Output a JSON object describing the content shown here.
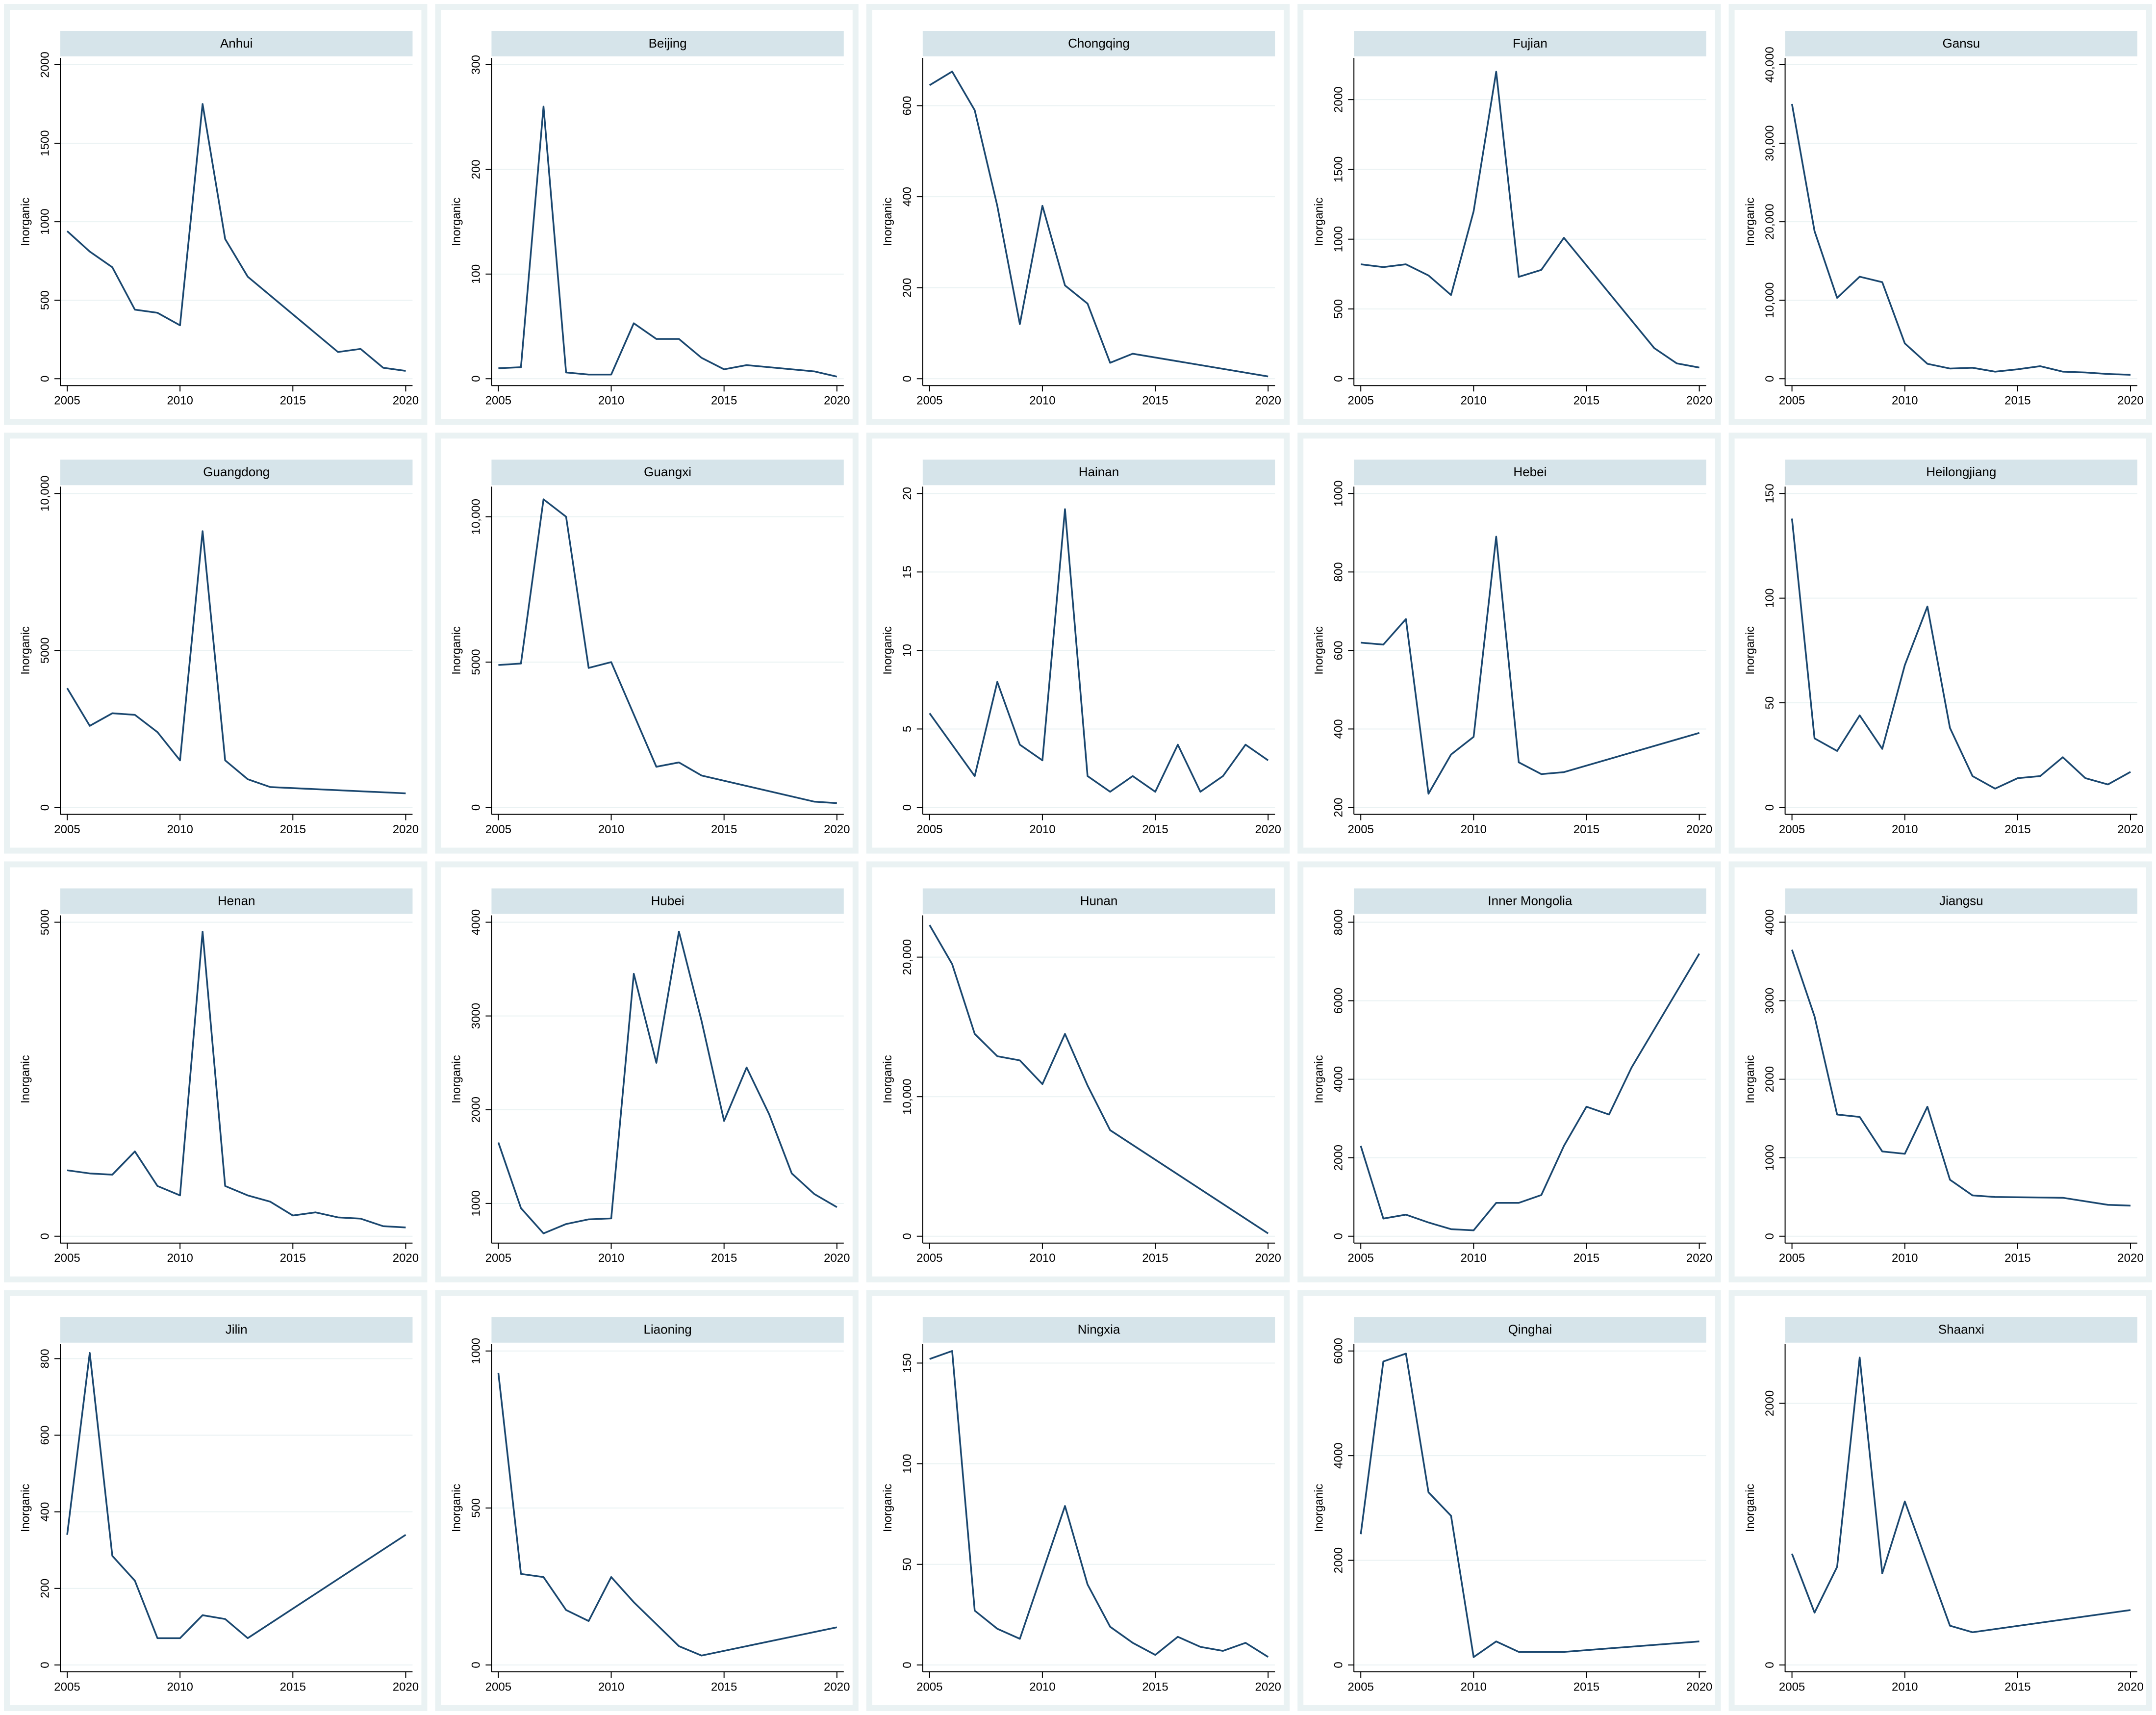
{
  "chart_data": [
    {
      "type": "line",
      "title": "Anhui",
      "y_label": "Inorganic",
      "color": "#1a476f",
      "grid": true,
      "x": [
        2005,
        2006,
        2007,
        2008,
        2009,
        2010,
        2011,
        2012,
        2013,
        2017,
        2018,
        2019,
        2020
      ],
      "values": [
        940,
        810,
        710,
        440,
        420,
        340,
        1750,
        890,
        650,
        170,
        190,
        70,
        50
      ],
      "xlim": [
        2005,
        2020
      ],
      "xticks": [
        2005,
        2010,
        2015,
        2020
      ],
      "ylim": [
        0,
        2000
      ],
      "yticks": [
        0,
        500,
        1000,
        1500,
        2000
      ]
    },
    {
      "type": "line",
      "title": "Beijing",
      "y_label": "Inorganic",
      "color": "#1a476f",
      "grid": true,
      "x": [
        2005,
        2006,
        2007,
        2008,
        2009,
        2010,
        2011,
        2012,
        2013,
        2014,
        2015,
        2016,
        2019,
        2020
      ],
      "values": [
        10,
        11,
        260,
        6,
        4,
        4,
        53,
        38,
        38,
        20,
        9,
        13,
        7,
        2
      ],
      "xlim": [
        2005,
        2020
      ],
      "xticks": [
        2005,
        2010,
        2015,
        2020
      ],
      "ylim": [
        0,
        300
      ],
      "yticks": [
        0,
        100,
        200,
        300
      ]
    },
    {
      "type": "line",
      "title": "Chongqing",
      "y_label": "Inorganic",
      "color": "#1a476f",
      "grid": true,
      "x": [
        2005,
        2006,
        2007,
        2008,
        2009,
        2010,
        2011,
        2012,
        2013,
        2014,
        2020
      ],
      "values": [
        645,
        675,
        590,
        380,
        120,
        380,
        205,
        165,
        35,
        55,
        5
      ],
      "xlim": [
        2005,
        2020
      ],
      "xticks": [
        2005,
        2010,
        2015,
        2020
      ],
      "ylim": [
        0,
        690
      ],
      "yticks": [
        0,
        200,
        400,
        600
      ]
    },
    {
      "type": "line",
      "title": "Fujian",
      "y_label": "Inorganic",
      "color": "#1a476f",
      "grid": true,
      "x": [
        2005,
        2006,
        2007,
        2008,
        2009,
        2010,
        2011,
        2012,
        2013,
        2014,
        2018,
        2019,
        2020
      ],
      "values": [
        820,
        800,
        820,
        740,
        600,
        1200,
        2200,
        730,
        780,
        1010,
        220,
        110,
        80
      ],
      "xlim": [
        2005,
        2020
      ],
      "xticks": [
        2005,
        2010,
        2015,
        2020
      ],
      "ylim": [
        0,
        2250
      ],
      "yticks": [
        0,
        500,
        1000,
        1500,
        2000
      ]
    },
    {
      "type": "line",
      "title": "Gansu",
      "y_label": "Inorganic",
      "color": "#1a476f",
      "grid": true,
      "x": [
        2005,
        2006,
        2007,
        2008,
        2009,
        2010,
        2011,
        2012,
        2013,
        2014,
        2015,
        2016,
        2017,
        2018,
        2019,
        2020
      ],
      "values": [
        35000,
        18800,
        10300,
        13000,
        12300,
        4500,
        1900,
        1300,
        1400,
        900,
        1200,
        1600,
        900,
        800,
        600,
        500
      ],
      "xlim": [
        2005,
        2020
      ],
      "xticks": [
        2005,
        2010,
        2015,
        2020
      ],
      "ylim": [
        0,
        40000
      ],
      "yticks": [
        0,
        {
          "value": 10000,
          "label": "10,000"
        },
        {
          "value": 20000,
          "label": "20,000"
        },
        {
          "value": 30000,
          "label": "30,000"
        },
        {
          "value": 40000,
          "label": "40,000"
        }
      ]
    },
    {
      "type": "line",
      "title": "Guangdong",
      "y_label": "Inorganic",
      "color": "#1a476f",
      "grid": true,
      "x": [
        2005,
        2006,
        2007,
        2008,
        2009,
        2010,
        2011,
        2012,
        2013,
        2014,
        2020
      ],
      "values": [
        3800,
        2600,
        3000,
        2950,
        2400,
        1500,
        8800,
        1500,
        900,
        650,
        450
      ],
      "xlim": [
        2005,
        2020
      ],
      "xticks": [
        2005,
        2010,
        2015,
        2020
      ],
      "ylim": [
        0,
        10000
      ],
      "yticks": [
        0,
        5000,
        {
          "value": 10000,
          "label": "10,000"
        }
      ]
    },
    {
      "type": "line",
      "title": "Guangxi",
      "y_label": "Inorganic",
      "color": "#1a476f",
      "grid": true,
      "x": [
        2005,
        2006,
        2007,
        2008,
        2009,
        2010,
        2012,
        2013,
        2014,
        2019,
        2020
      ],
      "values": [
        4900,
        4950,
        10600,
        10000,
        4800,
        5000,
        1400,
        1550,
        1100,
        200,
        150
      ],
      "xlim": [
        2005,
        2020
      ],
      "xticks": [
        2005,
        2010,
        2015,
        2020
      ],
      "ylim": [
        0,
        10800
      ],
      "yticks": [
        0,
        5000,
        {
          "value": 10000,
          "label": "10,000"
        }
      ]
    },
    {
      "type": "line",
      "title": "Hainan",
      "y_label": "Inorganic",
      "color": "#1a476f",
      "grid": true,
      "x": [
        2005,
        2007,
        2008,
        2009,
        2010,
        2011,
        2012,
        2013,
        2014,
        2015,
        2016,
        2017,
        2018,
        2019,
        2020
      ],
      "values": [
        6,
        2,
        8,
        4,
        3,
        19,
        2,
        1,
        2,
        1,
        4,
        1,
        2,
        4,
        3
      ],
      "xlim": [
        2005,
        2020
      ],
      "xticks": [
        2005,
        2010,
        2015,
        2020
      ],
      "ylim": [
        0,
        20
      ],
      "yticks": [
        0,
        5,
        10,
        15,
        20
      ]
    },
    {
      "type": "line",
      "title": "Hebei",
      "y_label": "Inorganic",
      "color": "#1a476f",
      "grid": true,
      "x": [
        2005,
        2006,
        2007,
        2008,
        2009,
        2010,
        2011,
        2012,
        2013,
        2014,
        2020
      ],
      "values": [
        620,
        615,
        680,
        235,
        335,
        380,
        890,
        315,
        285,
        290,
        390
      ],
      "xlim": [
        2005,
        2020
      ],
      "xticks": [
        2005,
        2010,
        2015,
        2020
      ],
      "ylim": [
        200,
        1000
      ],
      "yticks": [
        200,
        400,
        600,
        800,
        1000
      ]
    },
    {
      "type": "line",
      "title": "Heilongjiang",
      "y_label": "Inorganic",
      "color": "#1a476f",
      "grid": true,
      "x": [
        2005,
        2006,
        2007,
        2008,
        2009,
        2010,
        2011,
        2012,
        2013,
        2014,
        2015,
        2016,
        2017,
        2018,
        2019,
        2020
      ],
      "values": [
        138,
        33,
        27,
        44,
        28,
        68,
        96,
        38,
        15,
        9,
        14,
        15,
        24,
        14,
        11,
        17
      ],
      "xlim": [
        2005,
        2020
      ],
      "xticks": [
        2005,
        2010,
        2015,
        2020
      ],
      "ylim": [
        0,
        150
      ],
      "yticks": [
        0,
        50,
        100,
        150
      ]
    },
    {
      "type": "line",
      "title": "Henan",
      "y_label": "Inorganic",
      "color": "#1a476f",
      "grid": true,
      "x": [
        2005,
        2006,
        2007,
        2008,
        2009,
        2010,
        2011,
        2012,
        2013,
        2014,
        2015,
        2016,
        2017,
        2018,
        2019,
        2020
      ],
      "values": [
        1050,
        1000,
        980,
        1350,
        800,
        650,
        4850,
        800,
        650,
        550,
        330,
        380,
        300,
        280,
        160,
        140
      ],
      "xlim": [
        2005,
        2020
      ],
      "xticks": [
        2005,
        2010,
        2015,
        2020
      ],
      "ylim": [
        0,
        5000
      ],
      "yticks": [
        0,
        5000
      ]
    },
    {
      "type": "line",
      "title": "Hubei",
      "y_label": "Inorganic",
      "color": "#1a476f",
      "grid": true,
      "x": [
        2005,
        2006,
        2007,
        2008,
        2009,
        2010,
        2011,
        2012,
        2013,
        2014,
        2015,
        2016,
        2017,
        2018,
        2019,
        2020
      ],
      "values": [
        1650,
        950,
        680,
        780,
        830,
        840,
        3450,
        2500,
        3900,
        2950,
        1880,
        2450,
        1950,
        1320,
        1100,
        960
      ],
      "xlim": [
        2005,
        2020
      ],
      "xticks": [
        2005,
        2010,
        2015,
        2020
      ],
      "ylim": [
        650,
        4000
      ],
      "yticks": [
        1000,
        2000,
        3000,
        4000
      ]
    },
    {
      "type": "line",
      "title": "Hunan",
      "y_label": "Inorganic",
      "color": "#1a476f",
      "grid": true,
      "x": [
        2005,
        2006,
        2007,
        2008,
        2009,
        2010,
        2011,
        2012,
        2013,
        2020
      ],
      "values": [
        22300,
        19500,
        14500,
        12900,
        12600,
        10900,
        14500,
        10800,
        7600,
        200
      ],
      "xlim": [
        2005,
        2020
      ],
      "xticks": [
        2005,
        2010,
        2015,
        2020
      ],
      "ylim": [
        0,
        22500
      ],
      "yticks": [
        0,
        {
          "value": 10000,
          "label": "10,000"
        },
        {
          "value": 20000,
          "label": "20,000"
        }
      ]
    },
    {
      "type": "line",
      "title": "Inner Mongolia",
      "y_label": "Inorganic",
      "color": "#1a476f",
      "grid": true,
      "x": [
        2005,
        2006,
        2007,
        2008,
        2009,
        2010,
        2011,
        2012,
        2013,
        2014,
        2015,
        2016,
        2017,
        2020
      ],
      "values": [
        2300,
        450,
        550,
        350,
        180,
        150,
        850,
        850,
        1050,
        2300,
        3300,
        3100,
        4300,
        7200
      ],
      "xlim": [
        2005,
        2020
      ],
      "xticks": [
        2005,
        2010,
        2015,
        2020
      ],
      "ylim": [
        0,
        8000
      ],
      "yticks": [
        0,
        2000,
        4000,
        6000,
        8000
      ]
    },
    {
      "type": "line",
      "title": "Jiangsu",
      "y_label": "Inorganic",
      "color": "#1a476f",
      "grid": true,
      "x": [
        2005,
        2006,
        2007,
        2008,
        2009,
        2010,
        2011,
        2012,
        2013,
        2014,
        2017,
        2019,
        2020
      ],
      "values": [
        3650,
        2800,
        1550,
        1520,
        1080,
        1050,
        1650,
        720,
        520,
        500,
        490,
        400,
        390
      ],
      "xlim": [
        2005,
        2020
      ],
      "xticks": [
        2005,
        2010,
        2015,
        2020
      ],
      "ylim": [
        0,
        4000
      ],
      "yticks": [
        0,
        1000,
        2000,
        3000,
        4000
      ]
    },
    {
      "type": "line",
      "title": "Jilin",
      "y_label": "Inorganic",
      "color": "#1a476f",
      "grid": true,
      "x": [
        2005,
        2006,
        2007,
        2008,
        2009,
        2010,
        2011,
        2012,
        2013,
        2020
      ],
      "values": [
        340,
        815,
        285,
        220,
        70,
        70,
        130,
        120,
        70,
        340
      ],
      "xlim": [
        2005,
        2020
      ],
      "xticks": [
        2005,
        2010,
        2015,
        2020
      ],
      "ylim": [
        0,
        820
      ],
      "yticks": [
        0,
        200,
        400,
        600,
        800
      ]
    },
    {
      "type": "line",
      "title": "Liaoning",
      "y_label": "Inorganic",
      "color": "#1a476f",
      "grid": true,
      "x": [
        2005,
        2006,
        2007,
        2008,
        2009,
        2010,
        2011,
        2012,
        2013,
        2014,
        2020
      ],
      "values": [
        930,
        290,
        280,
        175,
        140,
        280,
        200,
        130,
        60,
        30,
        120
      ],
      "xlim": [
        2005,
        2020
      ],
      "xticks": [
        2005,
        2010,
        2015,
        2020
      ],
      "ylim": [
        0,
        1000
      ],
      "yticks": [
        0,
        500,
        1000
      ]
    },
    {
      "type": "line",
      "title": "Ningxia",
      "y_label": "Inorganic",
      "color": "#1a476f",
      "grid": true,
      "x": [
        2005,
        2006,
        2007,
        2008,
        2009,
        2011,
        2012,
        2013,
        2014,
        2015,
        2016,
        2017,
        2018,
        2019,
        2020
      ],
      "values": [
        152,
        156,
        27,
        18,
        13,
        79,
        40,
        19,
        11,
        5,
        14,
        9,
        7,
        11,
        4
      ],
      "xlim": [
        2005,
        2020
      ],
      "xticks": [
        2005,
        2010,
        2015,
        2020
      ],
      "ylim": [
        0,
        156
      ],
      "yticks": [
        0,
        50,
        100,
        150
      ]
    },
    {
      "type": "line",
      "title": "Qinghai",
      "y_label": "Inorganic",
      "color": "#1a476f",
      "grid": true,
      "x": [
        2005,
        2006,
        2007,
        2008,
        2009,
        2010,
        2011,
        2012,
        2014,
        2020
      ],
      "values": [
        2500,
        5800,
        5950,
        3300,
        2850,
        150,
        450,
        250,
        250,
        450
      ],
      "xlim": [
        2005,
        2020
      ],
      "xticks": [
        2005,
        2010,
        2015,
        2020
      ],
      "ylim": [
        0,
        6000
      ],
      "yticks": [
        0,
        2000,
        4000,
        6000
      ]
    },
    {
      "type": "line",
      "title": "Shaanxi",
      "y_label": "Inorganic",
      "color": "#1a476f",
      "grid": true,
      "x": [
        2005,
        2006,
        2007,
        2008,
        2009,
        2010,
        2012,
        2013,
        2020
      ],
      "values": [
        850,
        400,
        750,
        2350,
        700,
        1250,
        300,
        250,
        420
      ],
      "xlim": [
        2005,
        2020
      ],
      "xticks": [
        2005,
        2010,
        2015,
        2020
      ],
      "ylim": [
        0,
        2400
      ],
      "yticks": [
        0,
        2000
      ]
    }
  ]
}
